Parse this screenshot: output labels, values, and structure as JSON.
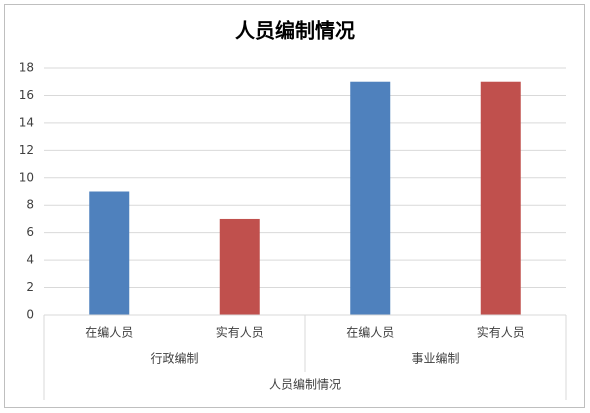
{
  "chart_data": {
    "type": "bar",
    "title": "人员编制情况",
    "groups": [
      {
        "name": "行政编制",
        "categories": [
          "在编人员",
          "实有人员"
        ],
        "values": [
          9,
          7
        ]
      },
      {
        "name": "事业编制",
        "categories": [
          "在编人员",
          "实有人员"
        ],
        "values": [
          17,
          17
        ]
      }
    ],
    "colors": [
      "#4f81bd",
      "#c0504d"
    ],
    "x_label": "人员编制情况",
    "ylim": [
      0,
      18
    ],
    "yticks": [
      0,
      2,
      4,
      6,
      8,
      10,
      12,
      14,
      16,
      18
    ],
    "grid": true
  }
}
